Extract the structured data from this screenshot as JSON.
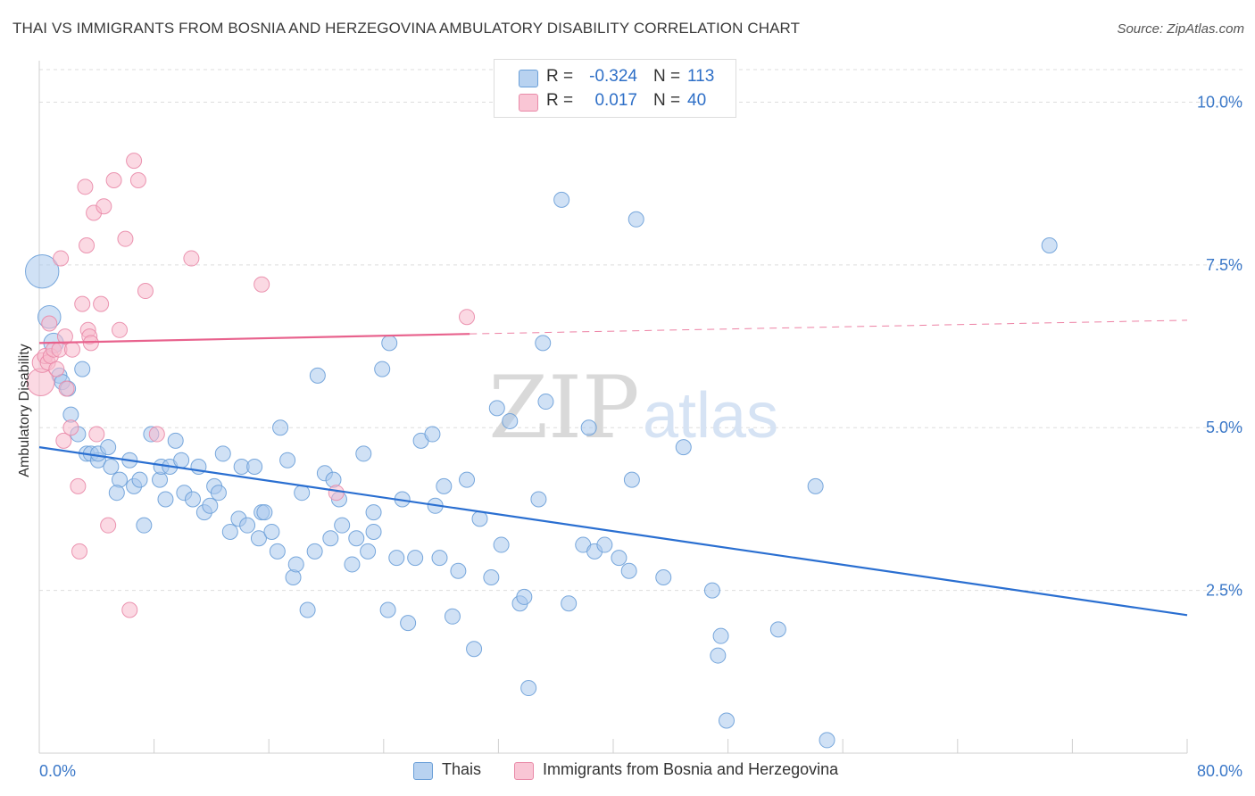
{
  "title": "THAI VS IMMIGRANTS FROM BOSNIA AND HERZEGOVINA AMBULATORY DISABILITY CORRELATION CHART",
  "source": "Source: ZipAtlas.com",
  "watermark": {
    "zip": "ZIP",
    "atlas": "atlas"
  },
  "legend_top": {
    "rows": [
      {
        "r_label": "R =",
        "r_value": "-0.324",
        "n_label": "N =",
        "n_value": "113"
      },
      {
        "r_label": "R =",
        "r_value": "0.017",
        "n_label": "N =",
        "n_value": "40"
      }
    ]
  },
  "legend_bottom": {
    "series_a": "Thais",
    "series_b": "Immigrants from Bosnia and Herzegovina"
  },
  "colors": {
    "blue_fill": "#a9c8ec",
    "blue_stroke": "#6a9fd8",
    "blue_line": "#2a6fd1",
    "pink_fill": "#f7b9cc",
    "pink_stroke": "#e98aa8",
    "pink_line": "#e8628d",
    "value_text": "#2e6fc7",
    "grid": "#dddddd",
    "axis_text": "#3b78c8"
  },
  "chart_data": {
    "type": "scatter",
    "title": "THAI VS IMMIGRANTS FROM BOSNIA AND HERZEGOVINA AMBULATORY DISABILITY CORRELATION CHART",
    "xlabel": "",
    "ylabel": "Ambulatory Disability",
    "xlim": [
      0,
      80
    ],
    "ylim": [
      0,
      10.5
    ],
    "x_tick_labels": [
      "0.0%",
      "80.0%"
    ],
    "y_ticks": [
      2.5,
      5.0,
      7.5,
      10.0
    ],
    "y_tick_labels": [
      "2.5%",
      "5.0%",
      "7.5%",
      "10.0%"
    ],
    "grid": true,
    "legend_position": "bottom",
    "series": [
      {
        "name": "Thais",
        "color": "#6a9fd8",
        "trend": {
          "x": [
            0,
            80
          ],
          "y": [
            4.7,
            2.12
          ]
        },
        "points": [
          [
            0.2,
            7.4,
            2.2
          ],
          [
            0.7,
            6.7,
            1.5
          ],
          [
            1,
            6.3,
            1.3
          ],
          [
            1.4,
            5.8,
            1
          ],
          [
            1.6,
            5.7,
            1
          ],
          [
            2,
            5.6,
            1
          ],
          [
            2.2,
            5.2,
            1
          ],
          [
            3,
            5.9,
            1
          ],
          [
            2.7,
            4.9,
            1
          ],
          [
            3.3,
            4.6,
            1
          ],
          [
            3.6,
            4.6,
            1
          ],
          [
            4.1,
            4.5,
            1
          ],
          [
            4.1,
            4.6,
            1
          ],
          [
            4.8,
            4.7,
            1
          ],
          [
            5,
            4.4,
            1
          ],
          [
            5.6,
            4.2,
            1
          ],
          [
            5.4,
            4.0,
            1
          ],
          [
            6.3,
            4.5,
            1
          ],
          [
            6.6,
            4.1,
            1
          ],
          [
            7,
            4.2,
            1
          ],
          [
            7.3,
            3.5,
            1
          ],
          [
            7.8,
            4.9,
            1
          ],
          [
            8.4,
            4.2,
            1
          ],
          [
            8.5,
            4.4,
            1
          ],
          [
            8.8,
            3.9,
            1
          ],
          [
            9.1,
            4.4,
            1
          ],
          [
            9.5,
            4.8,
            1
          ],
          [
            9.9,
            4.5,
            1
          ],
          [
            10.1,
            4.0,
            1
          ],
          [
            10.7,
            3.9,
            1
          ],
          [
            11.1,
            4.4,
            1
          ],
          [
            11.5,
            3.7,
            1
          ],
          [
            11.9,
            3.8,
            1
          ],
          [
            12.2,
            4.1,
            1
          ],
          [
            12.5,
            4.0,
            1
          ],
          [
            12.8,
            4.6,
            1
          ],
          [
            13.3,
            3.4,
            1
          ],
          [
            13.9,
            3.6,
            1
          ],
          [
            14.1,
            4.4,
            1
          ],
          [
            14.5,
            3.5,
            1
          ],
          [
            15,
            4.4,
            1
          ],
          [
            15.3,
            3.3,
            1
          ],
          [
            15.5,
            3.7,
            1
          ],
          [
            15.7,
            3.7,
            1
          ],
          [
            16.2,
            3.4,
            1
          ],
          [
            16.6,
            3.1,
            1
          ],
          [
            16.8,
            5.0,
            1
          ],
          [
            17.3,
            4.5,
            1
          ],
          [
            17.7,
            2.7,
            1
          ],
          [
            17.9,
            2.9,
            1
          ],
          [
            18.3,
            4.0,
            1
          ],
          [
            18.7,
            2.2,
            1
          ],
          [
            19.2,
            3.1,
            1
          ],
          [
            19.4,
            5.8,
            1
          ],
          [
            19.9,
            4.3,
            1
          ],
          [
            20.3,
            3.3,
            1
          ],
          [
            20.5,
            4.2,
            1
          ],
          [
            20.9,
            3.9,
            1
          ],
          [
            21.1,
            3.5,
            1
          ],
          [
            21.8,
            2.9,
            1
          ],
          [
            22.1,
            3.3,
            1
          ],
          [
            22.6,
            4.6,
            1
          ],
          [
            22.9,
            3.1,
            1
          ],
          [
            23.3,
            3.4,
            1
          ],
          [
            23.3,
            3.7,
            1
          ],
          [
            23.9,
            5.9,
            1
          ],
          [
            24.3,
            2.2,
            1
          ],
          [
            24.4,
            6.3,
            1
          ],
          [
            24.9,
            3.0,
            1
          ],
          [
            25.3,
            3.9,
            1
          ],
          [
            25.7,
            2.0,
            1
          ],
          [
            26.2,
            3.0,
            1
          ],
          [
            26.6,
            4.8,
            1
          ],
          [
            27.4,
            4.9,
            1
          ],
          [
            27.6,
            3.8,
            1
          ],
          [
            27.9,
            3.0,
            1
          ],
          [
            28.2,
            4.1,
            1
          ],
          [
            28.8,
            2.1,
            1
          ],
          [
            29.2,
            2.8,
            1
          ],
          [
            29.8,
            4.2,
            1
          ],
          [
            30.3,
            1.6,
            1
          ],
          [
            30.7,
            3.6,
            1
          ],
          [
            31.5,
            2.7,
            1
          ],
          [
            31.9,
            5.3,
            1
          ],
          [
            32.2,
            3.2,
            1
          ],
          [
            32.8,
            5.1,
            1
          ],
          [
            33.5,
            2.3,
            1
          ],
          [
            33.8,
            2.4,
            1
          ],
          [
            34.1,
            1.0,
            1
          ],
          [
            34.8,
            3.9,
            1
          ],
          [
            35.1,
            6.3,
            1
          ],
          [
            35.3,
            5.4,
            1
          ],
          [
            36.4,
            8.5,
            1
          ],
          [
            36.9,
            2.3,
            1
          ],
          [
            37.9,
            3.2,
            1
          ],
          [
            38.3,
            5.0,
            1
          ],
          [
            38.7,
            3.1,
            1
          ],
          [
            39.4,
            3.2,
            1
          ],
          [
            40.4,
            3.0,
            1
          ],
          [
            41.1,
            2.8,
            1
          ],
          [
            41.3,
            4.2,
            1
          ],
          [
            41.6,
            8.2,
            1
          ],
          [
            43.5,
            2.7,
            1
          ],
          [
            44.9,
            4.7,
            1
          ],
          [
            46.9,
            2.5,
            1
          ],
          [
            47.3,
            1.5,
            1
          ],
          [
            47.5,
            1.8,
            1
          ],
          [
            47.9,
            0.5,
            1
          ],
          [
            51.5,
            1.9,
            1
          ],
          [
            54.1,
            4.1,
            1
          ],
          [
            54.9,
            0.2,
            1
          ],
          [
            70.4,
            7.8,
            1
          ]
        ]
      },
      {
        "name": "Immigrants from Bosnia and Herzegovina",
        "color": "#e98aa8",
        "trend": {
          "x": [
            0,
            30
          ],
          "y": [
            6.3,
            6.44
          ]
        },
        "trend_dashed": {
          "x": [
            30,
            80
          ],
          "y": [
            6.44,
            6.65
          ]
        },
        "points": [
          [
            0.1,
            5.7,
            1.8
          ],
          [
            0.2,
            6.0,
            1.3
          ],
          [
            0.4,
            6.1,
            1
          ],
          [
            0.6,
            6.0,
            1
          ],
          [
            0.7,
            6.6,
            1
          ],
          [
            0.8,
            6.1,
            1
          ],
          [
            1,
            6.2,
            1
          ],
          [
            1.2,
            5.9,
            1
          ],
          [
            1.4,
            6.2,
            1
          ],
          [
            1.5,
            7.6,
            1
          ],
          [
            1.7,
            4.8,
            1
          ],
          [
            1.8,
            6.4,
            1
          ],
          [
            1.9,
            5.6,
            1
          ],
          [
            2.2,
            5.0,
            1
          ],
          [
            2.3,
            6.2,
            1
          ],
          [
            2.7,
            4.1,
            1
          ],
          [
            2.8,
            3.1,
            1
          ],
          [
            3,
            6.9,
            1
          ],
          [
            3.2,
            8.7,
            1
          ],
          [
            3.3,
            7.8,
            1
          ],
          [
            3.4,
            6.5,
            1
          ],
          [
            3.5,
            6.4,
            1
          ],
          [
            3.6,
            6.3,
            1
          ],
          [
            3.8,
            8.3,
            1
          ],
          [
            4,
            4.9,
            1
          ],
          [
            4.3,
            6.9,
            1
          ],
          [
            4.5,
            8.4,
            1
          ],
          [
            4.8,
            3.5,
            1
          ],
          [
            5.2,
            8.8,
            1
          ],
          [
            5.6,
            6.5,
            1
          ],
          [
            6,
            7.9,
            1
          ],
          [
            6.3,
            2.2,
            1
          ],
          [
            6.6,
            9.1,
            1
          ],
          [
            6.9,
            8.8,
            1
          ],
          [
            7.4,
            7.1,
            1
          ],
          [
            8.2,
            4.9,
            1
          ],
          [
            10.6,
            7.6,
            1
          ],
          [
            15.5,
            7.2,
            1
          ],
          [
            20.7,
            4.0,
            1
          ],
          [
            29.8,
            6.7,
            1
          ]
        ]
      }
    ]
  }
}
